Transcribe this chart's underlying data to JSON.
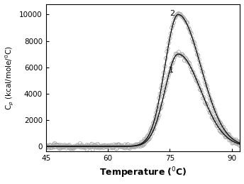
{
  "title": "",
  "xlabel": "Temperature ($^0$C)",
  "ylabel": "C$_p$ (kcal/mole/$^0$C)",
  "xlim": [
    45,
    92
  ],
  "ylim": [
    -400,
    10800
  ],
  "yticks": [
    0,
    2000,
    4000,
    6000,
    8000,
    10000
  ],
  "xticks": [
    45,
    60,
    75,
    90
  ],
  "peak_temp": 77.0,
  "curve1_peak": 7000,
  "curve2_peak": 10000,
  "curve1_label": "1",
  "curve2_label": "2",
  "line_color": "#111111",
  "scatter_color": "#aaaaaa",
  "background_color": "#ffffff",
  "sigma_rise": 3.2,
  "sigma_fall": 5.5,
  "noise_amplitude": 80,
  "scatter_size": 14,
  "n_scatter": 200
}
